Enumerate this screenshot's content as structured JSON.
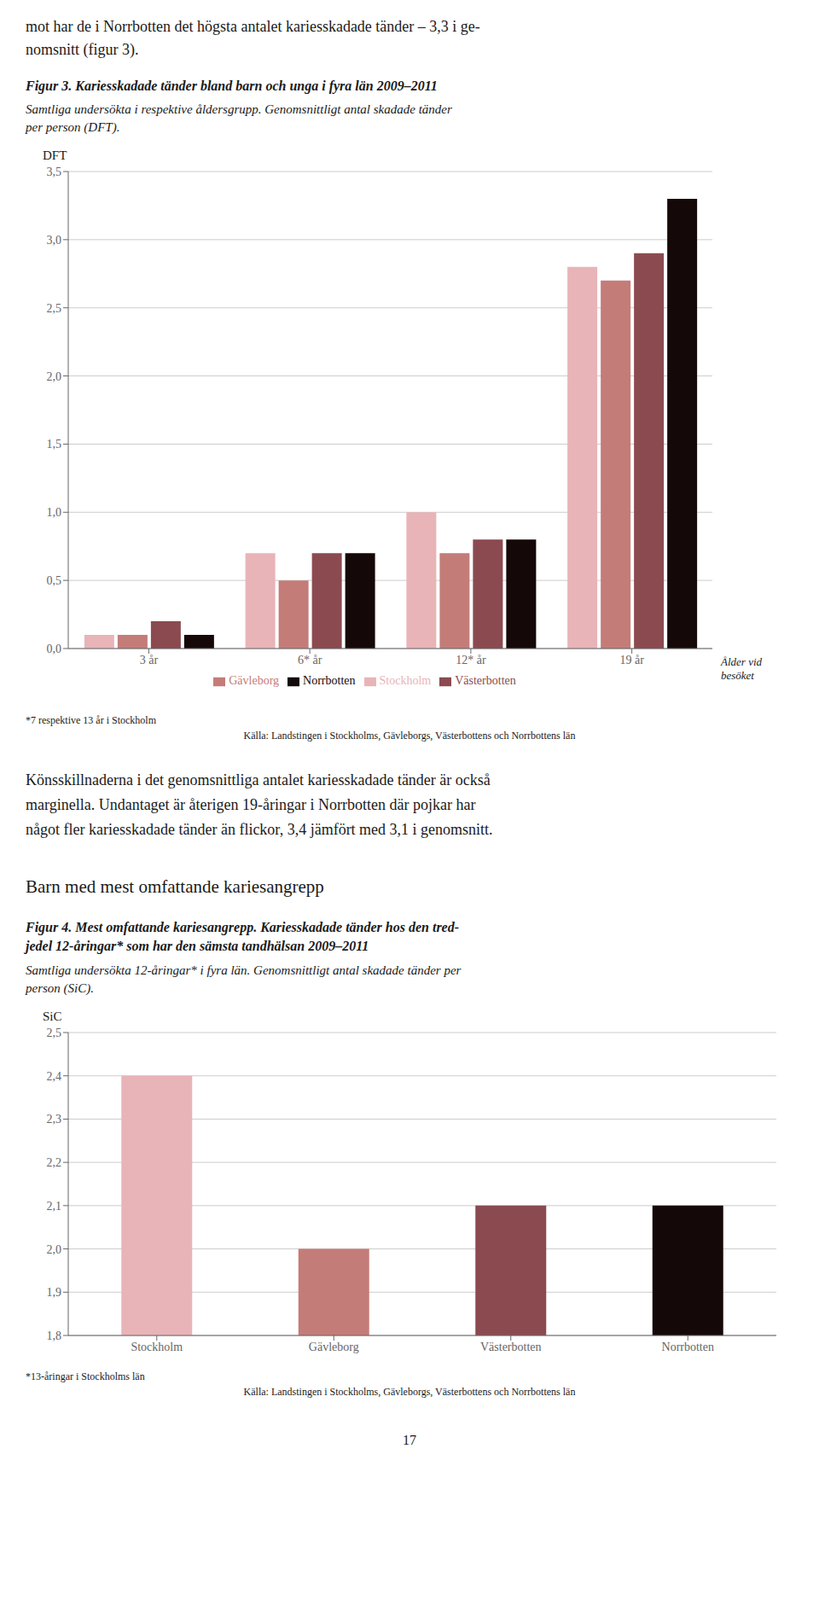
{
  "chart_data": [
    {
      "type": "bar",
      "title": "Figur 3. Kariesskadade tänder bland barn och unga i fyra län 2009–2011",
      "subtitle": "Samtliga undersökta i respektive åldersgrupp. Genomsnittligt antal skadade tänder\nper person (DFT).",
      "ylabel": "DFT",
      "xlabel": "Ålder vid\nbesöket",
      "categories": [
        "3 år",
        "6* år",
        "12* år",
        "19 år"
      ],
      "series": [
        {
          "name": "Stockholm",
          "color": "#E8B4B8",
          "values": [
            0.1,
            0.7,
            1.0,
            2.8
          ]
        },
        {
          "name": "Gävleborg",
          "color": "#C47C78",
          "values": [
            0.1,
            0.5,
            0.7,
            2.7
          ]
        },
        {
          "name": "Västerbotten",
          "color": "#8B4A50",
          "values": [
            0.2,
            0.7,
            0.8,
            2.9
          ]
        },
        {
          "name": "Norrbotten",
          "color": "#150808",
          "values": [
            0.1,
            0.7,
            0.8,
            3.3
          ]
        }
      ],
      "ylim": [
        0.0,
        3.5
      ],
      "yticks": [
        {
          "value": 0.0,
          "label": "0,0"
        },
        {
          "value": 0.5,
          "label": "0,5"
        },
        {
          "value": 1.0,
          "label": "1,0"
        },
        {
          "value": 1.5,
          "label": "1,5"
        },
        {
          "value": 2.0,
          "label": "2,0"
        },
        {
          "value": 2.5,
          "label": "2,5"
        },
        {
          "value": 3.0,
          "label": "3,0"
        },
        {
          "value": 3.5,
          "label": "3,5"
        }
      ],
      "grid": true,
      "legend": "bottom",
      "annotations": [
        "*7 respektive 13 år i Stockholm",
        "Källa: Landstingen i Stockholms, Gävleborgs, Västerbottens och Norrbottens län"
      ]
    },
    {
      "type": "bar",
      "title": "Figur 4. Mest omfattande kariesangrepp. Kariesskadade tänder hos den tred-\njedel 12-åringar* som har den sämsta tandhälsan 2009–2011",
      "subtitle": "Samtliga undersökta 12-åringar* i fyra län. Genomsnittligt antal skadade tänder per\nperson (SiC).",
      "ylabel": "SiC",
      "categories": [
        "Stockholm",
        "Gävleborg",
        "Västerbotten",
        "Norrbotten"
      ],
      "values": [
        2.4,
        2.0,
        2.1,
        2.1
      ],
      "colors": [
        "#E8B4B8",
        "#C47C78",
        "#8B4A50",
        "#150808"
      ],
      "ylim": [
        1.8,
        2.5
      ],
      "yticks": [
        {
          "value": 1.8,
          "label": "1,8"
        },
        {
          "value": 1.9,
          "label": "1,9"
        },
        {
          "value": 2.0,
          "label": "2,0"
        },
        {
          "value": 2.1,
          "label": "2,1"
        },
        {
          "value": 2.2,
          "label": "2,2"
        },
        {
          "value": 2.3,
          "label": "2,3"
        },
        {
          "value": 2.4,
          "label": "2,4"
        },
        {
          "value": 2.5,
          "label": "2,5"
        }
      ],
      "grid": true,
      "annotations": [
        "*13-åringar i Stockholms län",
        "Källa: Landstingen i Stockholms, Gävleborgs, Västerbottens och Norrbottens län"
      ]
    }
  ],
  "annotations": [
    "mot har de i Norrbotten det högsta antalet kariesskadade tänder – 3,3 i ge-\nnomsnitt (figur 3).",
    "Könsskillnaderna i det genomsnittliga antalet kariesskadade tänder är också\nmarginella. Undantaget är återigen 19-åringar i Norrbotten där pojkar har\nnågot fler kariesskadade tänder än flickor, 3,4 jämfört med 3,1 i genomsnitt.",
    "Barn med mest omfattande kariesangrepp",
    "17"
  ]
}
